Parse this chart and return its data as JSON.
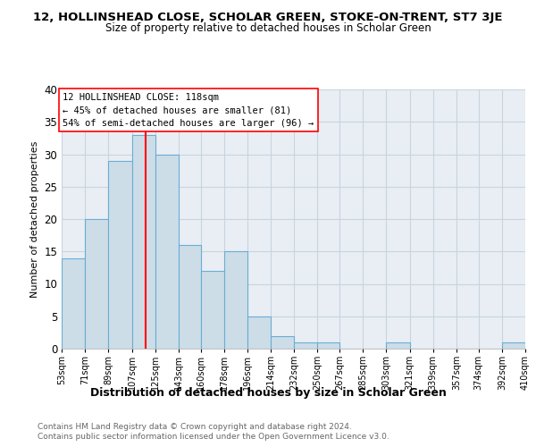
{
  "title1": "12, HOLLINSHEAD CLOSE, SCHOLAR GREEN, STOKE-ON-TRENT, ST7 3JE",
  "title2": "Size of property relative to detached houses in Scholar Green",
  "xlabel": "Distribution of detached houses by size in Scholar Green",
  "ylabel": "Number of detached properties",
  "bin_edges": [
    53,
    71,
    89,
    107,
    125,
    143,
    160,
    178,
    196,
    214,
    232,
    250,
    267,
    285,
    303,
    321,
    339,
    357,
    374,
    392,
    410
  ],
  "bin_labels": [
    "53sqm",
    "71sqm",
    "89sqm",
    "107sqm",
    "125sqm",
    "143sqm",
    "160sqm",
    "178sqm",
    "196sqm",
    "214sqm",
    "232sqm",
    "250sqm",
    "267sqm",
    "285sqm",
    "303sqm",
    "321sqm",
    "339sqm",
    "357sqm",
    "374sqm",
    "392sqm",
    "410sqm"
  ],
  "counts": [
    14,
    20,
    29,
    33,
    30,
    16,
    12,
    15,
    5,
    2,
    1,
    1,
    0,
    0,
    1,
    0,
    0,
    0,
    0,
    1
  ],
  "bar_color": "#ccdde8",
  "bar_edge_color": "#6aadd5",
  "red_line_x": 118,
  "ylim": [
    0,
    40
  ],
  "yticks": [
    0,
    5,
    10,
    15,
    20,
    25,
    30,
    35,
    40
  ],
  "annotation_line1": "12 HOLLINSHEAD CLOSE: 118sqm",
  "annotation_line2": "← 45% of detached houses are smaller (81)",
  "annotation_line3": "54% of semi-detached houses are larger (96) →",
  "footer1": "Contains HM Land Registry data © Crown copyright and database right 2024.",
  "footer2": "Contains public sector information licensed under the Open Government Licence v3.0.",
  "background_color": "#ffffff",
  "plot_bg_color": "#e8eef4",
  "grid_color": "#c8d4e0"
}
